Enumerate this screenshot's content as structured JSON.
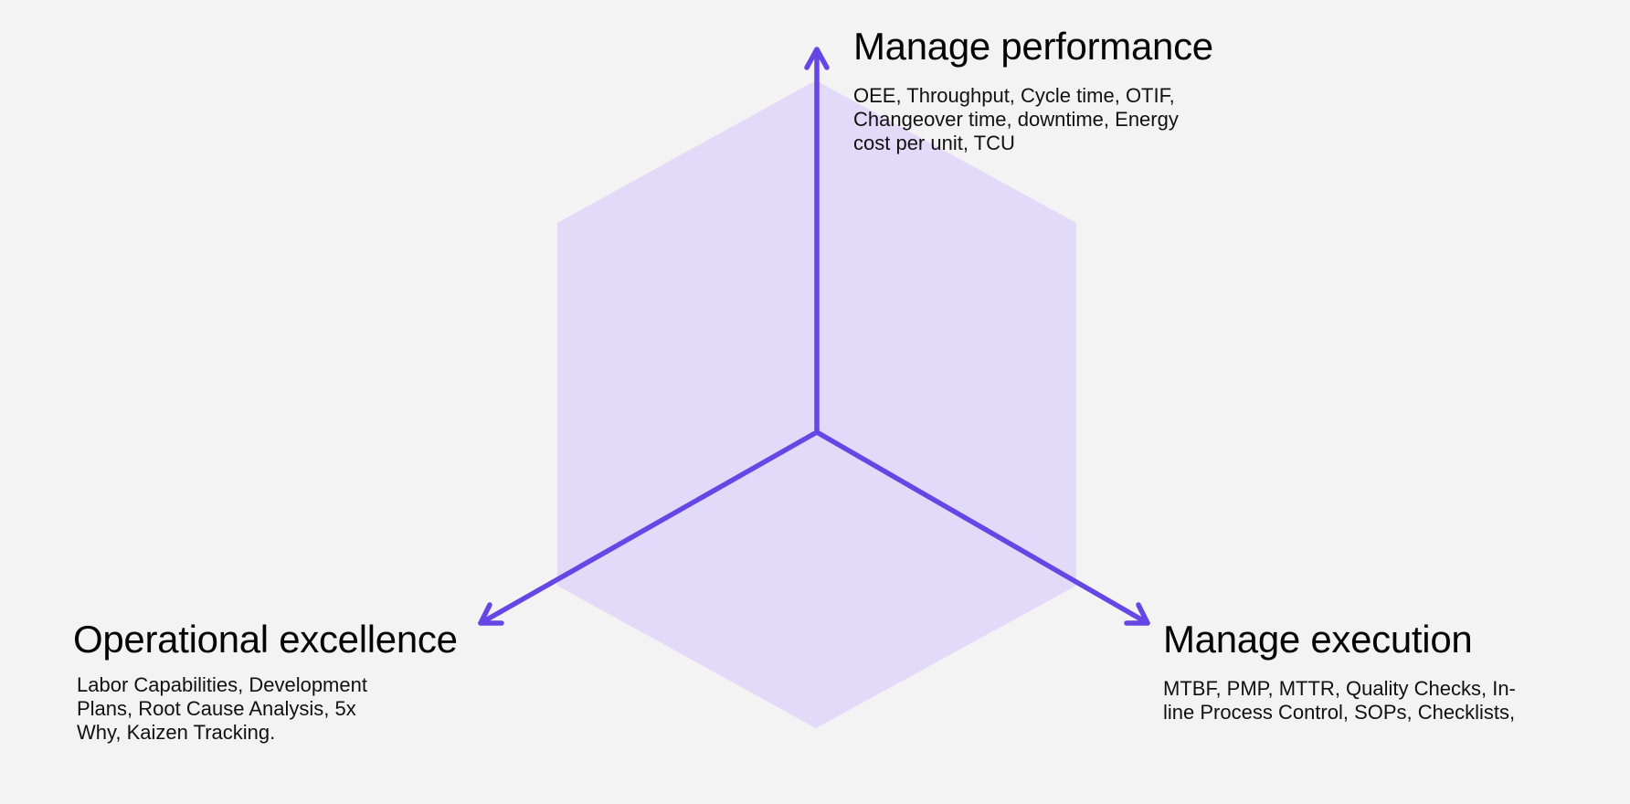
{
  "colors": {
    "background": "#f3f3f3",
    "hexagon_fill": "#e2daf9",
    "axis_stroke": "#6646e5",
    "text": "#0b0b0b"
  },
  "axes": {
    "performance": {
      "title": "Manage performance",
      "description": "OEE, Throughput, Cycle time, OTIF, Changeover time, downtime, Energy cost per unit, TCU"
    },
    "excellence": {
      "title": "Operational excellence",
      "description": "Labor Capabilities, Development Plans, Root Cause Analysis, 5x Why, Kaizen Tracking."
    },
    "execution": {
      "title": "Manage execution",
      "description": "MTBF, PMP, MTTR, Quality Checks, In-line Process Control, SOPs, Checklists,"
    }
  }
}
